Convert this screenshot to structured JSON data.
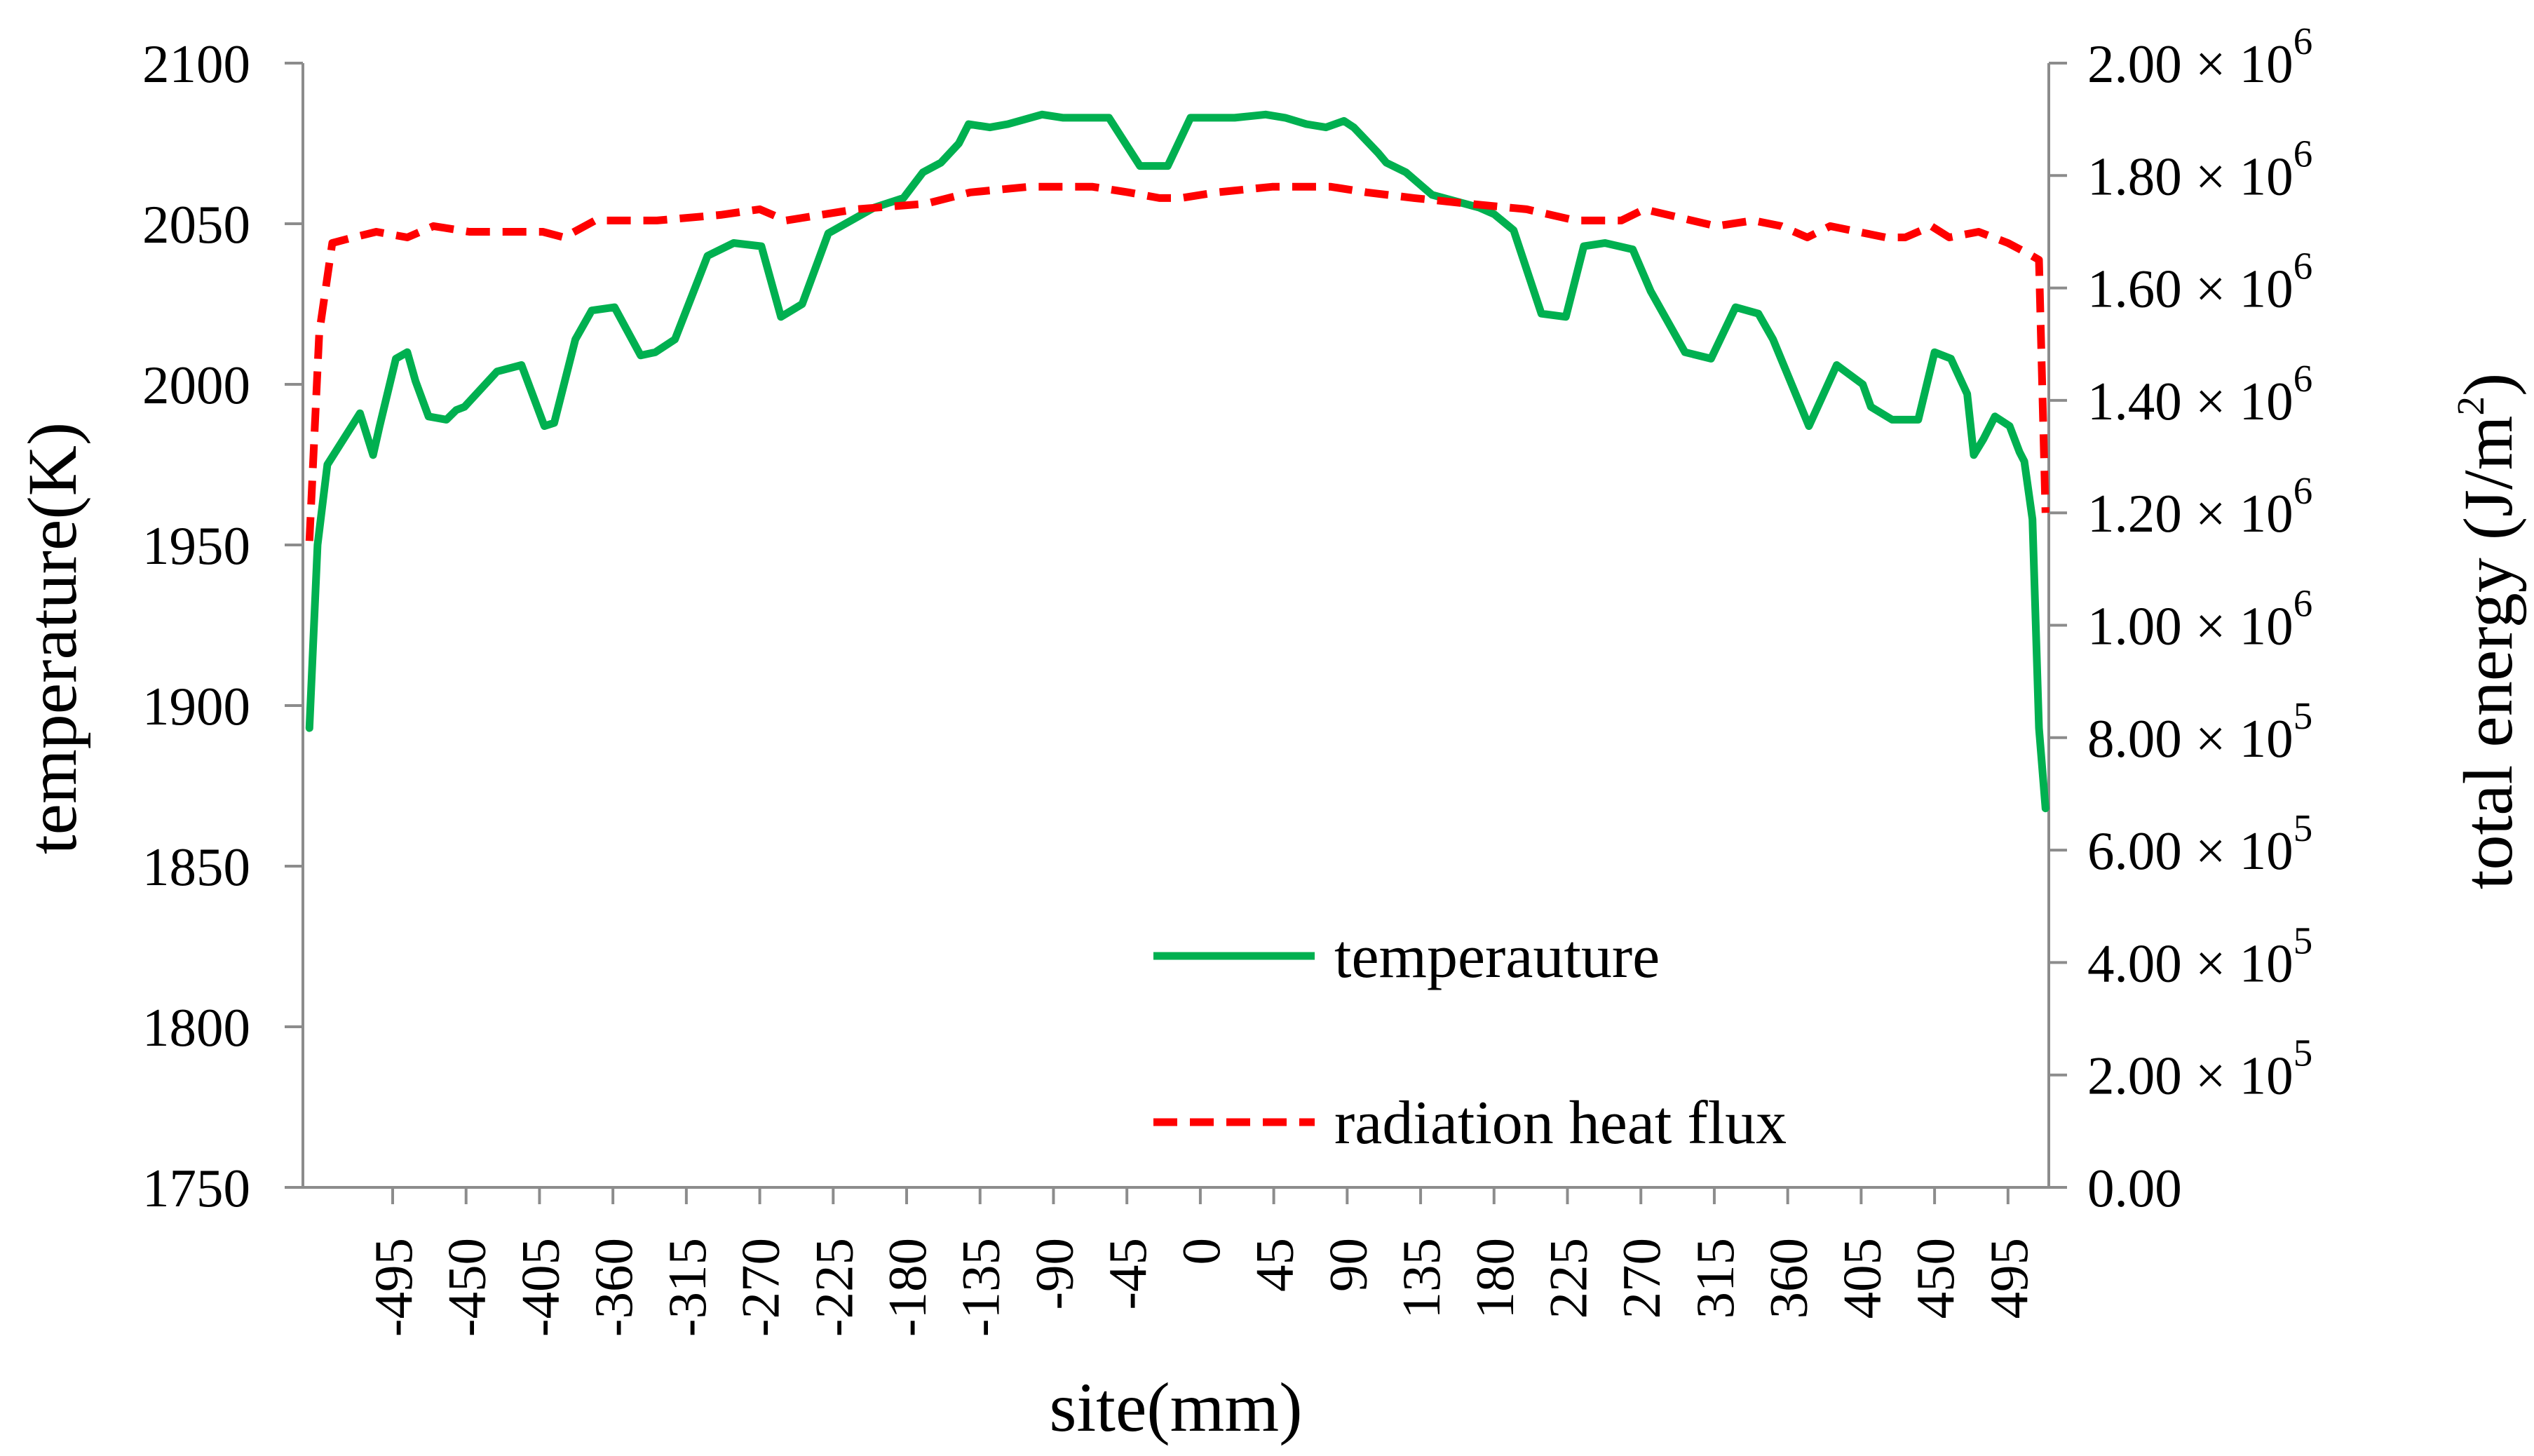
{
  "chart_data": {
    "type": "line",
    "title": "",
    "xlabel": "site(mm)",
    "ylabel_left": "temperature(K)",
    "ylabel_right": {
      "base": "total energy (J/m",
      "exp": "2",
      "close": ")"
    },
    "x_range": [
      -550,
      520
    ],
    "ylim_left": [
      1750,
      2100
    ],
    "ylim_right": [
      0,
      2000000
    ],
    "grid": false,
    "legend_position": "bottom-center",
    "x_ticks": [
      -495,
      -450,
      -405,
      -360,
      -315,
      -270,
      -225,
      -180,
      -135,
      -90,
      -45,
      0,
      45,
      90,
      135,
      180,
      225,
      270,
      315,
      360,
      405,
      450,
      495
    ],
    "left_ticks": [
      1750,
      1800,
      1850,
      1900,
      1950,
      2000,
      2050,
      2100
    ],
    "right_ticks": [
      {
        "value": 0,
        "label": "0.00",
        "mantissa": "",
        "exp": ""
      },
      {
        "value": 200000,
        "label": "",
        "mantissa": "2.00",
        "exp": "5"
      },
      {
        "value": 400000,
        "label": "",
        "mantissa": "4.00",
        "exp": "5"
      },
      {
        "value": 600000,
        "label": "",
        "mantissa": "6.00",
        "exp": "5"
      },
      {
        "value": 800000,
        "label": "",
        "mantissa": "8.00",
        "exp": "5"
      },
      {
        "value": 1000000,
        "label": "",
        "mantissa": "1.00",
        "exp": "6"
      },
      {
        "value": 1200000,
        "label": "",
        "mantissa": "1.20",
        "exp": "6"
      },
      {
        "value": 1400000,
        "label": "",
        "mantissa": "1.40",
        "exp": "6"
      },
      {
        "value": 1600000,
        "label": "",
        "mantissa": "1.60",
        "exp": "6"
      },
      {
        "value": 1800000,
        "label": "",
        "mantissa": "1.80",
        "exp": "6"
      },
      {
        "value": 2000000,
        "label": "",
        "mantissa": "2.00",
        "exp": "6"
      }
    ],
    "series": [
      {
        "name": "temperauture",
        "axis": "left",
        "color": "#00b050",
        "dash": "solid",
        "x": [
          -546,
          -541,
          -535,
          -515,
          -507,
          -503,
          -493,
          -486,
          -481,
          -473,
          -462,
          -456,
          -451,
          -431,
          -416,
          -402,
          -396,
          -383,
          -373,
          -359,
          -343,
          -334,
          -322,
          -302,
          -286,
          -269,
          -257,
          -244,
          -228,
          -200,
          -182,
          -170,
          -159,
          -148,
          -142,
          -129,
          -118,
          -97,
          -84,
          -56,
          -37,
          -31,
          -20,
          -6,
          0,
          21,
          40,
          52,
          65,
          77,
          88,
          94,
          109,
          114,
          126,
          142,
          171,
          180,
          192,
          209,
          224,
          235,
          248,
          265,
          276,
          297,
          313,
          328,
          342,
          351,
          373,
          390,
          406,
          411,
          424,
          440,
          450,
          460,
          470,
          474,
          480,
          487,
          496,
          502,
          505,
          510,
          514,
          518
        ],
        "values": [
          1893,
          1950,
          1975,
          1991,
          1978,
          1987,
          2008,
          2010,
          2001,
          1990,
          1989,
          1992,
          1993,
          2004,
          2006,
          1987,
          1988,
          2014,
          2023,
          2024,
          2009,
          2010,
          2014,
          2040,
          2044,
          2043,
          2021,
          2025,
          2047,
          2055,
          2058,
          2066,
          2069,
          2075,
          2081,
          2080,
          2081,
          2084,
          2083,
          2083,
          2068,
          2068,
          2068,
          2083,
          2083,
          2083,
          2084,
          2083,
          2081,
          2080,
          2082,
          2080,
          2072,
          2069,
          2066,
          2059,
          2055,
          2053,
          2048,
          2022,
          2021,
          2043,
          2044,
          2042,
          2029,
          2010,
          2008,
          2024,
          2022,
          2014,
          1987,
          2006,
          2000,
          1993,
          1989,
          1989,
          2010,
          2008,
          1997,
          1978,
          1983,
          1990,
          1987,
          1979,
          1976,
          1958,
          1893,
          1868
        ]
      },
      {
        "name": "radiation heat flux",
        "axis": "right",
        "color": "#ff0000",
        "dash": "dashed",
        "x": [
          -546,
          -540,
          -532,
          -519,
          -505,
          -486,
          -470,
          -448,
          -427,
          -403,
          -390,
          -371,
          -333,
          -294,
          -270,
          -254,
          -211,
          -168,
          -141,
          -105,
          -66,
          -44,
          -25,
          -12,
          10,
          44,
          80,
          102,
          131,
          164,
          200,
          230,
          258,
          272,
          316,
          339,
          356,
          372,
          386,
          420,
          432,
          448,
          459,
          477,
          495,
          508,
          514,
          518
        ],
        "values": [
          1150000,
          1520000,
          1680000,
          1690000,
          1700000,
          1690000,
          1710000,
          1700000,
          1700000,
          1700000,
          1690000,
          1720000,
          1720000,
          1730000,
          1740000,
          1720000,
          1740000,
          1750000,
          1770000,
          1780000,
          1780000,
          1770000,
          1760000,
          1760000,
          1770000,
          1780000,
          1780000,
          1770000,
          1760000,
          1750000,
          1740000,
          1720000,
          1720000,
          1740000,
          1710000,
          1720000,
          1710000,
          1690000,
          1710000,
          1690000,
          1690000,
          1710000,
          1690000,
          1700000,
          1680000,
          1660000,
          1650000,
          1200000
        ]
      }
    ]
  }
}
